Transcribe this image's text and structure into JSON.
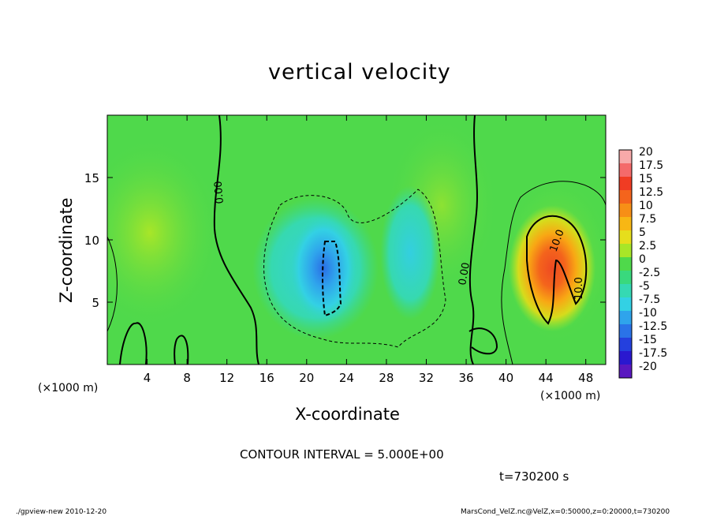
{
  "chart_data": {
    "type": "heatmap",
    "title": "vertical velocity",
    "xlabel": "X-coordinate",
    "ylabel": "Z-coordinate",
    "x_unit_left": "(×1000 m)",
    "x_unit_right": "(×1000 m)",
    "xlim": [
      0,
      50
    ],
    "ylim": [
      0,
      20
    ],
    "x_ticks": [
      4,
      8,
      12,
      16,
      20,
      24,
      28,
      32,
      36,
      40,
      44,
      48
    ],
    "y_ticks": [
      5,
      10,
      15
    ],
    "colorbar": {
      "labels": [
        "20",
        "17.5",
        "15",
        "12.5",
        "10",
        "7.5",
        "5",
        "2.5",
        "0",
        "-2.5",
        "-5",
        "-7.5",
        "-10",
        "-12.5",
        "-15",
        "-17.5",
        "-20"
      ],
      "colors": [
        "#f7a9a9",
        "#f46a6a",
        "#f03c23",
        "#f4641c",
        "#f78f16",
        "#f8b714",
        "#e6de1c",
        "#a8e628",
        "#4fd94b",
        "#39d97d",
        "#35d9b3",
        "#33d1e4",
        "#2fa4ec",
        "#2a73e8",
        "#2440de",
        "#2a18cf",
        "#5a18c0"
      ]
    },
    "contour_interval": "CONTOUR INTERVAL = 5.000E+00",
    "contour_labels": [
      "0.00",
      "0.00",
      "10.0",
      "10.0"
    ],
    "features": [
      {
        "name": "updraft",
        "x": 44,
        "z": 7.5,
        "value": 15
      },
      {
        "name": "downdraft",
        "x": 22,
        "z": 7.5,
        "value": -12.5
      },
      {
        "name": "weak-downdraft",
        "x": 30,
        "z": 8,
        "value": -5
      }
    ],
    "time_label": "t=730200  s",
    "footer_left": "./gpview-new   2010-12-20",
    "footer_right": "MarsCond_VelZ.nc@VelZ,x=0:50000,z=0:20000,t=730200"
  }
}
